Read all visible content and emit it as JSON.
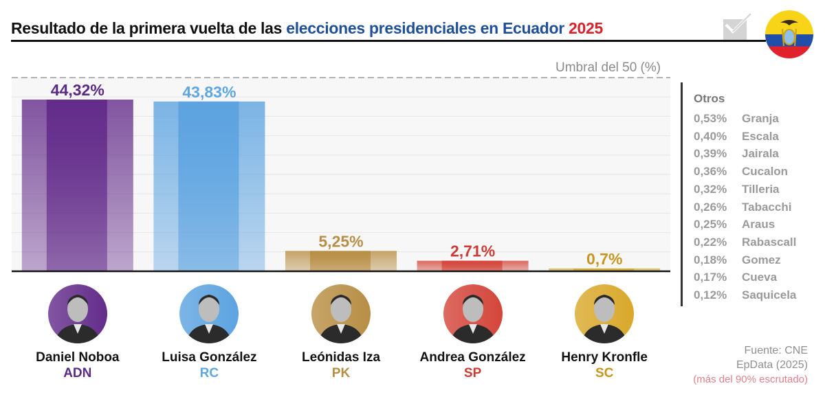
{
  "header": {
    "title_part1": "Resultado de la primera vuelta de las ",
    "title_part2": "elecciones presidenciales en Ecuador",
    "title_part3": " 2025",
    "icons": [
      "ballot-check-icon",
      "ecuador-flag-icon"
    ]
  },
  "colors": {
    "title_blue": "#1f4e9a",
    "title_red": "#d8222a",
    "adn": "#632c8a",
    "rc": "#5ca3e0",
    "pk": "#b88e45",
    "sp": "#d4453a",
    "sc": "#d9a82a"
  },
  "chart_data": {
    "type": "bar",
    "title": "Resultado de la primera vuelta de las elecciones presidenciales en Ecuador 2025",
    "categories": [
      "Daniel Noboa",
      "Luisa González",
      "Leónidas Iza",
      "Andrea González",
      "Henry Kronfle"
    ],
    "parties": [
      "ADN",
      "RC",
      "PK",
      "SP",
      "SC"
    ],
    "values": [
      44.32,
      43.83,
      5.25,
      2.71,
      0.7
    ],
    "value_labels": [
      "44,32%",
      "43,83%",
      "5,25%",
      "2,71%",
      "0,7%"
    ],
    "colors": [
      "#632c8a",
      "#5ca3e0",
      "#b88e45",
      "#d4453a",
      "#d9a82a"
    ],
    "label_colors": [
      "#5a2a86",
      "#5ea6e2",
      "#b88e45",
      "#cc3b35",
      "#c8951e"
    ],
    "ylim": [
      0,
      50
    ],
    "grid": true,
    "gridline_step": 5,
    "threshold": {
      "value": 50,
      "label": "Umbral del 50 (%)"
    },
    "xlabel": "",
    "ylabel": ""
  },
  "others": {
    "title": "Otros",
    "items": [
      {
        "pct": "0,53%",
        "name": "Granja"
      },
      {
        "pct": "0,40%",
        "name": "Escala"
      },
      {
        "pct": "0,39%",
        "name": "Jairala"
      },
      {
        "pct": "0,36%",
        "name": "Cucalon"
      },
      {
        "pct": "0,32%",
        "name": "Tilleria"
      },
      {
        "pct": "0,26%",
        "name": "Tabacchi"
      },
      {
        "pct": "0,25%",
        "name": "Araus"
      },
      {
        "pct": "0,22%",
        "name": "Rabascall"
      },
      {
        "pct": "0,18%",
        "name": "Gomez"
      },
      {
        "pct": "0,17%",
        "name": "Cueva"
      },
      {
        "pct": "0,12%",
        "name": "Saquicela"
      }
    ]
  },
  "candidates": [
    {
      "name": "Daniel Noboa",
      "party": "ADN",
      "color": "#632c8a"
    },
    {
      "name": "Luisa González",
      "party": "RC",
      "color": "#5ca3e0"
    },
    {
      "name": "Leónidas Iza",
      "party": "PK",
      "color": "#b88e45"
    },
    {
      "name": "Andrea González",
      "party": "SP",
      "color": "#d4453a"
    },
    {
      "name": "Henry Kronfle",
      "party": "SC",
      "color": "#d9a82a"
    }
  ],
  "source": {
    "line1": "Fuente: CNE",
    "line2": "EpData (2025)",
    "line3": "(más del 90% escrutado)"
  }
}
